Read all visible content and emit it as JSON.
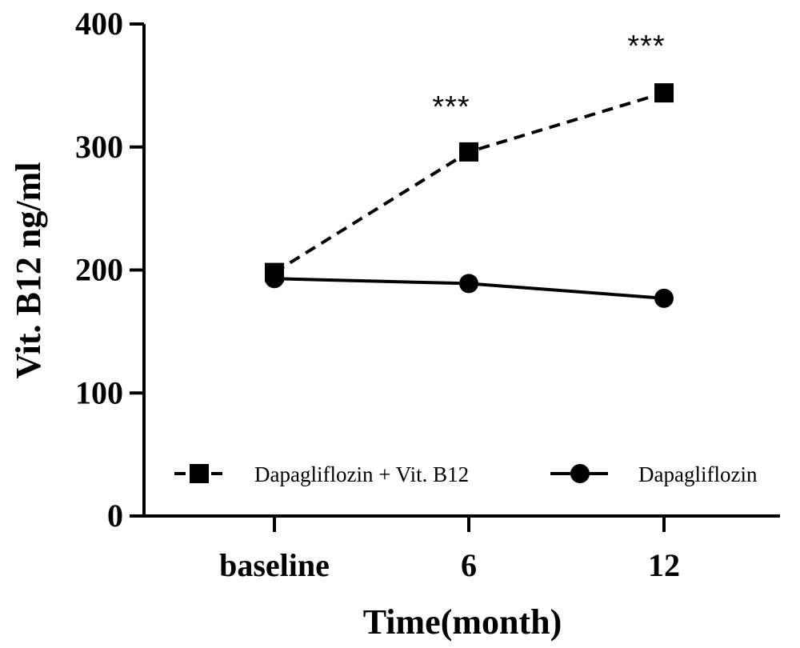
{
  "chart_data": {
    "type": "line",
    "categories": [
      "baseline",
      "6",
      "12"
    ],
    "xlabel": "Time(month)",
    "ylabel": "Vit. B12 ng/ml",
    "ylim": [
      0,
      400
    ],
    "yticks": [
      "0",
      "100",
      "200",
      "300",
      "400"
    ],
    "grid": false,
    "legend_position": "bottom",
    "series": [
      {
        "name": "Dapagliflozin + Vit. B12",
        "values": [
          198,
          296,
          344
        ],
        "marker": "square",
        "line": "dashed",
        "color": "#000000"
      },
      {
        "name": "Dapagliflozin",
        "values": [
          193,
          189,
          177
        ],
        "marker": "circle",
        "line": "solid",
        "color": "#000000"
      }
    ],
    "annotations": [
      {
        "category": "6",
        "text": "***"
      },
      {
        "category": "12",
        "text": "***"
      }
    ]
  }
}
